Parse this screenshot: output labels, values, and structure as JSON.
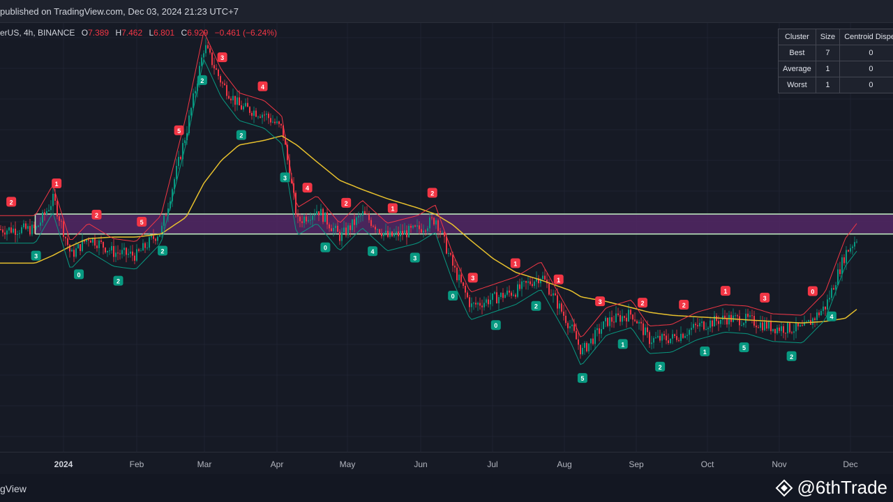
{
  "header": {
    "published": "published on TradingView.com, Dec 03, 2024 21:23 UTC+7"
  },
  "legend": {
    "symbol": "erUS, 4h, BINANCE",
    "o_label": "O",
    "o_value": "7.389",
    "h_label": "H",
    "h_value": "7.462",
    "l_label": "L",
    "l_value": "6.801",
    "c_label": "C",
    "c_value": "6.929",
    "change": "−0.461 (−6.24%)"
  },
  "cluster_table": {
    "headers": [
      "Cluster",
      "Size",
      "Centroid Disper"
    ],
    "rows": [
      {
        "cluster": "Best",
        "size": "7",
        "centroid": "0"
      },
      {
        "cluster": "Average",
        "size": "1",
        "centroid": "0"
      },
      {
        "cluster": "Worst",
        "size": "1",
        "centroid": "0"
      }
    ]
  },
  "x_axis": {
    "labels": [
      "2024",
      "Feb",
      "Mar",
      "Apr",
      "May",
      "Jun",
      "Jul",
      "Aug",
      "Sep",
      "Oct",
      "Nov",
      "Dec"
    ]
  },
  "footer": {
    "brand": "gView",
    "handle": "@6thTrade"
  },
  "colors": {
    "background": "#161a25",
    "bull": "#089981",
    "bear": "#f23645",
    "ma": "#e8c12d",
    "zone": "#5b2a6e",
    "zone_line": "#c8f5c8"
  },
  "chart_data": {
    "type": "line",
    "x": [
      "2024-01-01",
      "2024-01-08",
      "2024-01-15",
      "2024-01-22",
      "2024-02-01",
      "2024-02-10",
      "2024-02-20",
      "2024-03-01",
      "2024-03-08",
      "2024-03-15",
      "2024-03-22",
      "2024-04-01",
      "2024-04-08",
      "2024-04-14",
      "2024-04-22",
      "2024-05-01",
      "2024-05-10",
      "2024-05-20",
      "2024-06-01",
      "2024-06-08",
      "2024-06-15",
      "2024-06-22",
      "2024-07-01",
      "2024-07-10",
      "2024-07-20",
      "2024-08-01",
      "2024-08-05",
      "2024-08-15",
      "2024-08-25",
      "2024-09-01",
      "2024-09-10",
      "2024-09-20",
      "2024-10-01",
      "2024-10-10",
      "2024-10-20",
      "2024-11-01",
      "2024-11-10",
      "2024-11-18",
      "2024-11-25",
      "2024-12-01",
      "2024-12-03"
    ],
    "series": [
      {
        "values": [
          17.5,
          19.5,
          15.8,
          17.0,
          16.0,
          15.8,
          17.5,
          24.0,
          29.5,
          27.0,
          25.5,
          25.0,
          24.0,
          18.0,
          18.8,
          17.0,
          18.5,
          17.0,
          17.5,
          18.2,
          15.0,
          12.5,
          13.0,
          13.5,
          14.5,
          11.0,
          9.5,
          11.5,
          12.0,
          10.3,
          10.4,
          11.2,
          11.7,
          11.6,
          11.1,
          11.0,
          12.5,
          16.0,
          17.5,
          20.0,
          21.0
        ]
      },
      {
        "values": [
          15.3,
          15.8,
          16.4,
          16.9,
          17.0,
          17.0,
          17.2,
          18.3,
          20.5,
          22.0,
          23.0,
          23.3,
          23.6,
          23.0,
          21.9,
          20.7,
          20.1,
          19.5,
          18.9,
          18.5,
          17.8,
          16.8,
          15.6,
          14.7,
          14.2,
          13.5,
          13.1,
          12.8,
          12.4,
          12.1,
          11.9,
          11.8,
          11.7,
          11.6,
          11.5,
          11.4,
          11.5,
          11.7,
          12.6,
          13.8,
          14.4
        ]
      }
    ],
    "ylim": [
      3,
      31
    ],
    "zone": [
      17.2,
      18.5
    ]
  }
}
